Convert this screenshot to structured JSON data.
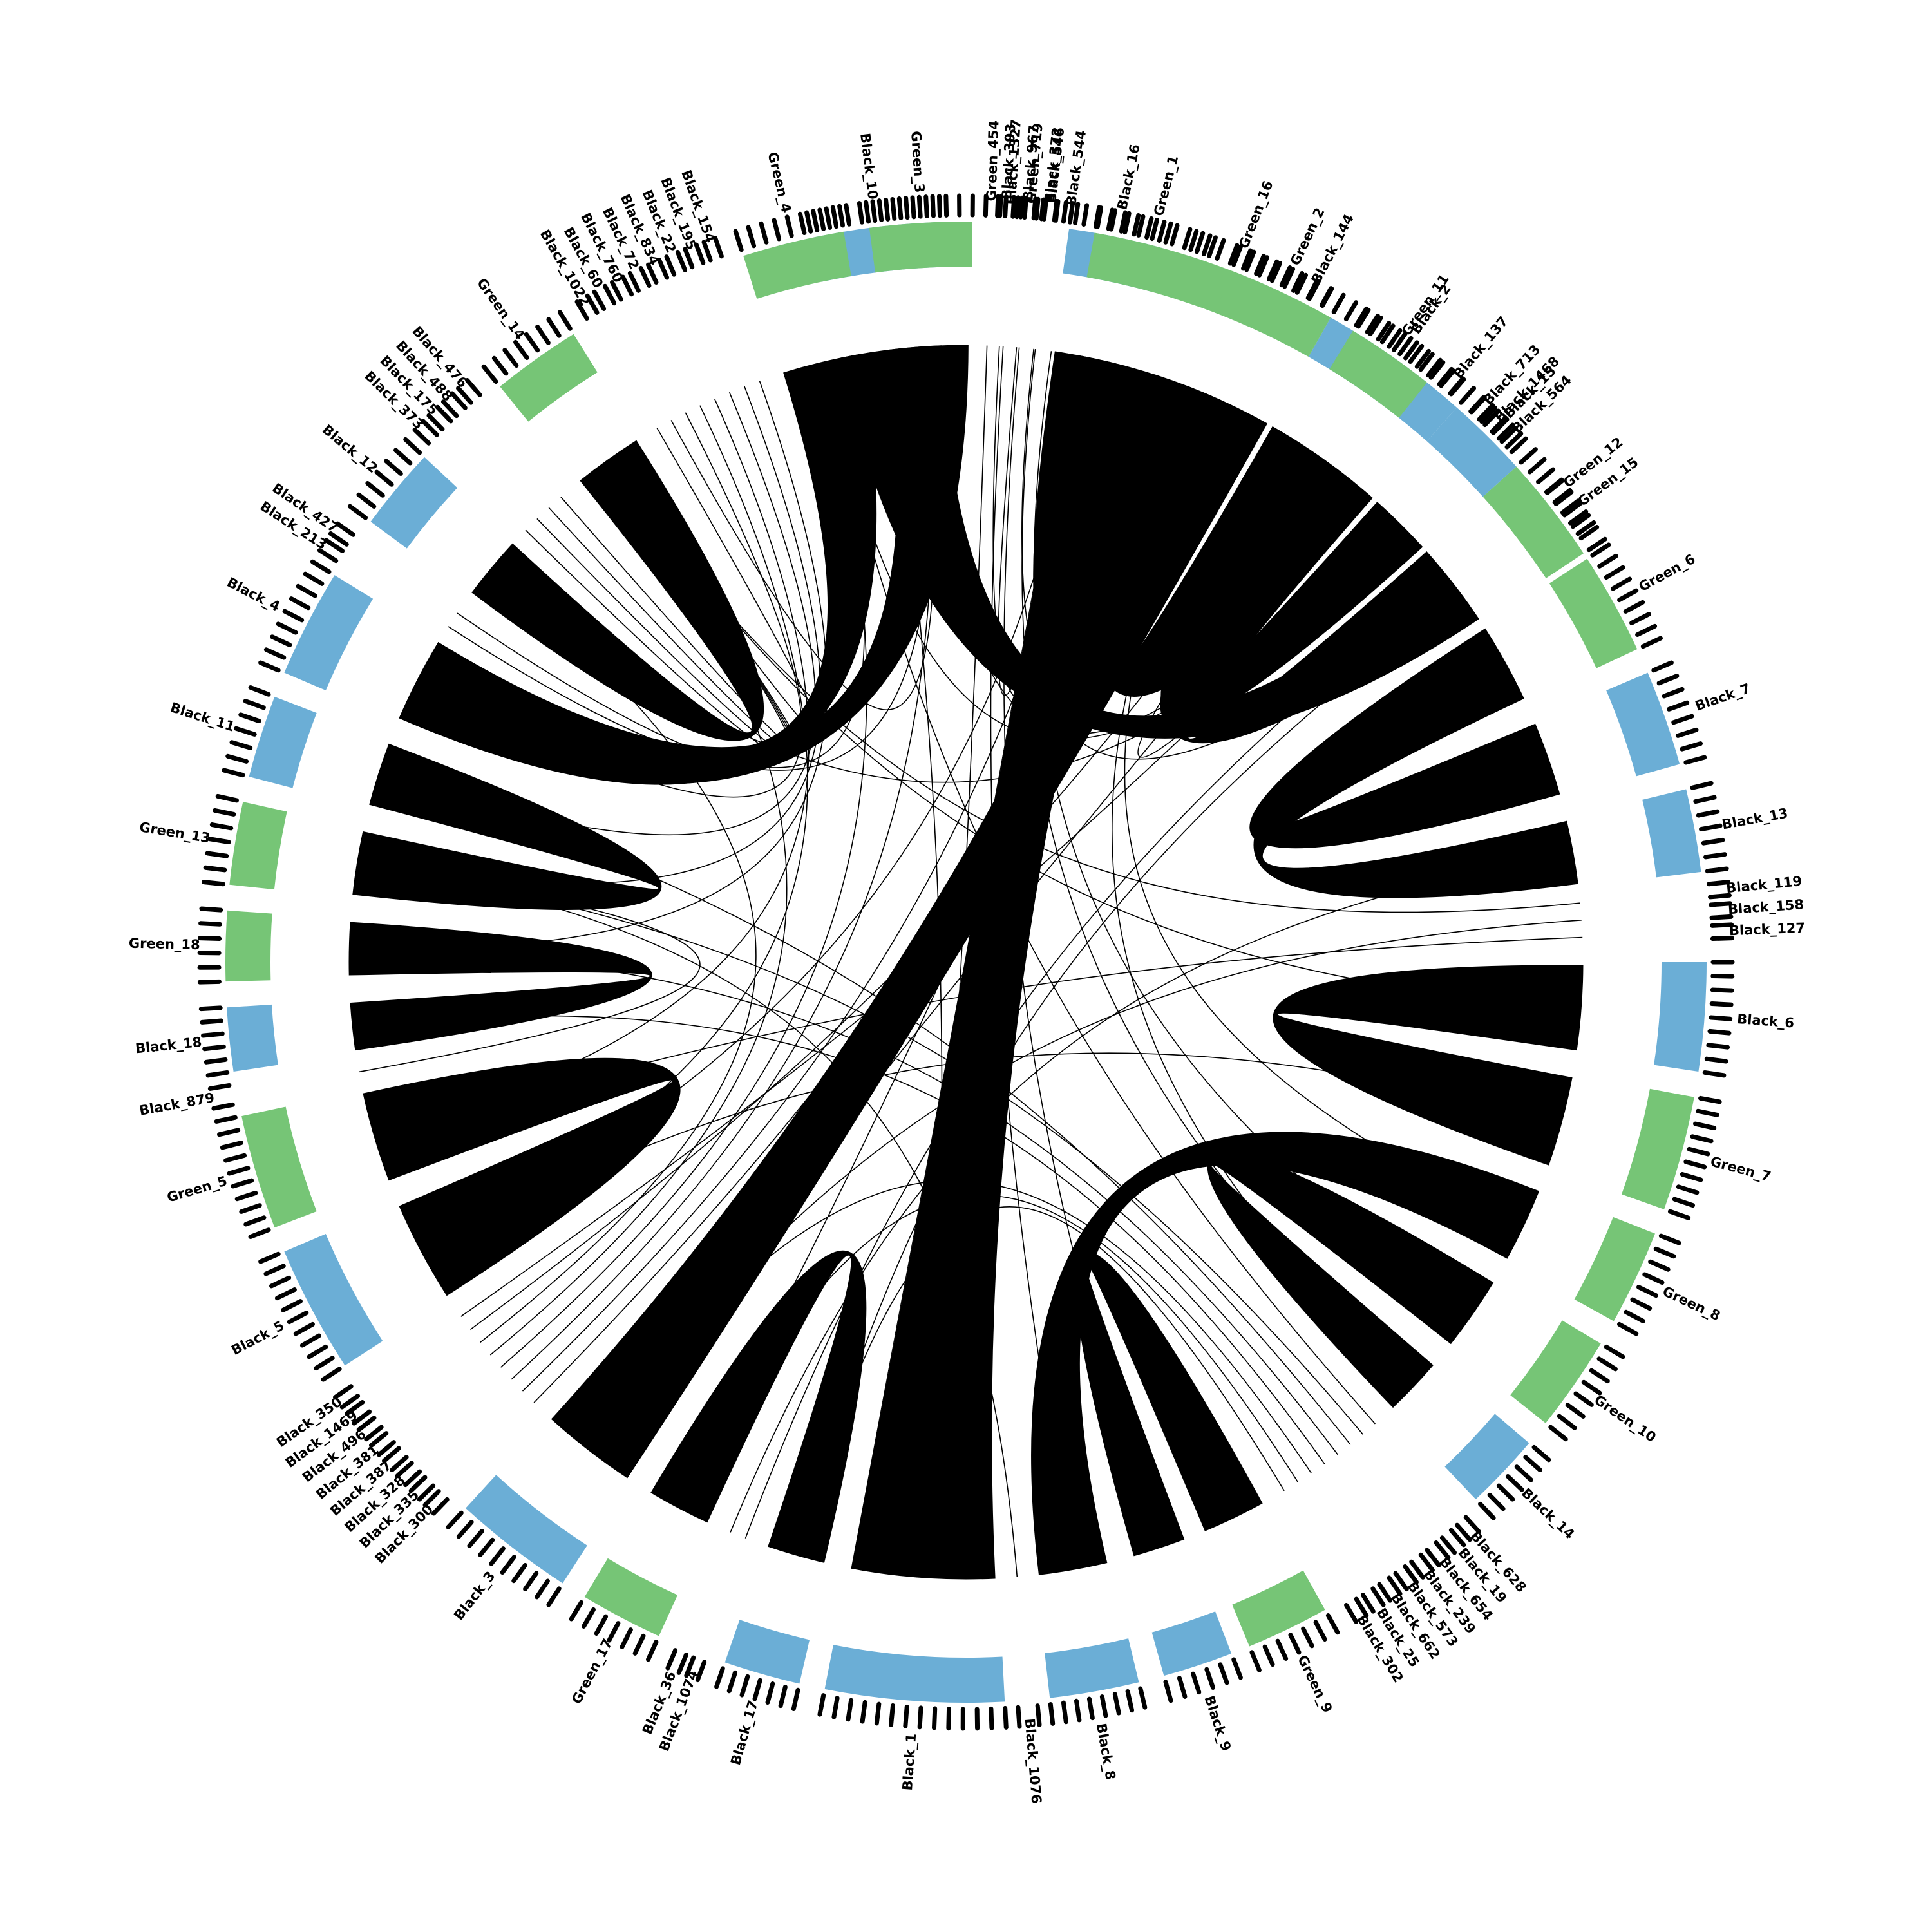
{
  "colors": {
    "green": "#76c576",
    "blue": "#6baed6",
    "link": "#000000",
    "tick": "#000000",
    "background": "#ffffff"
  },
  "segments": [
    {
      "name": "Black_10",
      "color": "blue",
      "start": -12.0,
      "end": -2.0
    },
    {
      "name": "Black_393",
      "color": "none",
      "start": 2.6,
      "end": 3.6
    },
    {
      "name": "Black_967",
      "color": "none",
      "start": 4.2,
      "end": 5.2
    },
    {
      "name": "Black_372",
      "color": "none",
      "start": 5.8,
      "end": 6.8
    },
    {
      "name": "Black_16",
      "color": "blue",
      "start": 8.0,
      "end": 15.5
    },
    {
      "name": "Green_16",
      "color": "green",
      "start": 17.5,
      "end": 25.0
    },
    {
      "name": "Black_144",
      "color": "none",
      "start": 26.0,
      "end": 28.5
    },
    {
      "name": "Black_2",
      "color": "blue",
      "start": 29.5,
      "end": 41.5
    },
    {
      "name": "Black_713",
      "color": "none",
      "start": 42.5,
      "end": 43.4
    },
    {
      "name": "Black_1468",
      "color": "none",
      "start": 44.0,
      "end": 44.9
    },
    {
      "name": "Black_564",
      "color": "none",
      "start": 45.5,
      "end": 46.4
    },
    {
      "name": "Green_12",
      "color": "green",
      "start": 48.0,
      "end": 55.0
    },
    {
      "name": "Green_6",
      "color": "green",
      "start": 57.0,
      "end": 65.0
    },
    {
      "name": "Black_7",
      "color": "blue",
      "start": 67.0,
      "end": 74.5
    },
    {
      "name": "Black_13",
      "color": "blue",
      "start": 76.5,
      "end": 83.0
    },
    {
      "name": "Black_119",
      "color": "none",
      "start": 84.0,
      "end": 85.0
    },
    {
      "name": "Black_158",
      "color": "none",
      "start": 85.6,
      "end": 86.6
    },
    {
      "name": "Black_127",
      "color": "none",
      "start": 87.2,
      "end": 88.2
    },
    {
      "name": "Black_6",
      "color": "blue",
      "start": 90.0,
      "end": 98.5
    },
    {
      "name": "Green_7",
      "color": "green",
      "start": 100.5,
      "end": 109.5
    },
    {
      "name": "Green_8",
      "color": "green",
      "start": 111.5,
      "end": 119.0
    },
    {
      "name": "Green_10",
      "color": "green",
      "start": 121.0,
      "end": 128.5
    },
    {
      "name": "Black_14",
      "color": "blue",
      "start": 130.5,
      "end": 136.5
    },
    {
      "name": "Black_628",
      "color": "none",
      "start": 138.0,
      "end": 138.9
    },
    {
      "name": "Black_19",
      "color": "none",
      "start": 139.5,
      "end": 140.4
    },
    {
      "name": "Black_654",
      "color": "none",
      "start": 141.0,
      "end": 141.9
    },
    {
      "name": "Black_239",
      "color": "none",
      "start": 142.5,
      "end": 143.4
    },
    {
      "name": "Black_573",
      "color": "none",
      "start": 144.0,
      "end": 144.9
    },
    {
      "name": "Black_662",
      "color": "none",
      "start": 145.5,
      "end": 146.4
    },
    {
      "name": "Black_25",
      "color": "none",
      "start": 147.0,
      "end": 147.9
    },
    {
      "name": "Black_302",
      "color": "none",
      "start": 148.5,
      "end": 149.4
    },
    {
      "name": "Green_9",
      "color": "green",
      "start": 151.0,
      "end": 157.5
    },
    {
      "name": "Black_9",
      "color": "blue",
      "start": 159.0,
      "end": 164.5
    },
    {
      "name": "Black_8",
      "color": "blue",
      "start": 166.5,
      "end": 173.5
    },
    {
      "name": "Black_1076",
      "color": "none",
      "start": 174.5,
      "end": 176.0
    },
    {
      "name": "Black_1",
      "color": "blue",
      "start": 177.0,
      "end": 191.0
    },
    {
      "name": "Black_17",
      "color": "blue",
      "start": 193.0,
      "end": 199.0
    },
    {
      "name": "Black_1074",
      "color": "none",
      "start": 200.5,
      "end": 201.4
    },
    {
      "name": "Black_36",
      "color": "none",
      "start": 202.0,
      "end": 202.9
    },
    {
      "name": "Green_17",
      "color": "green",
      "start": 204.5,
      "end": 211.0
    },
    {
      "name": "Black_3",
      "color": "blue",
      "start": 213.0,
      "end": 222.5
    },
    {
      "name": "Black_300",
      "color": "none",
      "start": 224.0,
      "end": 224.9
    },
    {
      "name": "Black_335",
      "color": "none",
      "start": 225.5,
      "end": 226.4
    },
    {
      "name": "Black_328",
      "color": "none",
      "start": 227.0,
      "end": 227.9
    },
    {
      "name": "Black_387",
      "color": "none",
      "start": 228.5,
      "end": 229.4
    },
    {
      "name": "Black_381",
      "color": "none",
      "start": 230.0,
      "end": 230.9
    },
    {
      "name": "Black_496",
      "color": "none",
      "start": 231.5,
      "end": 232.4
    },
    {
      "name": "Black_1469",
      "color": "none",
      "start": 233.0,
      "end": 233.9
    },
    {
      "name": "Black_350",
      "color": "none",
      "start": 234.5,
      "end": 235.4
    },
    {
      "name": "Black_5",
      "color": "blue",
      "start": 237.0,
      "end": 247.0
    },
    {
      "name": "Green_5",
      "color": "green",
      "start": 249.0,
      "end": 258.0
    },
    {
      "name": "Black_879",
      "color": "none",
      "start": 259.0,
      "end": 260.5
    },
    {
      "name": "Black_18",
      "color": "blue",
      "start": 261.5,
      "end": 266.5
    },
    {
      "name": "Green_18",
      "color": "green",
      "start": 268.5,
      "end": 274.0
    },
    {
      "name": "Green_13",
      "color": "green",
      "start": 276.0,
      "end": 282.5
    },
    {
      "name": "Black_11",
      "color": "blue",
      "start": 284.5,
      "end": 291.0
    },
    {
      "name": "Black_4",
      "color": "blue",
      "start": 293.0,
      "end": 301.5
    },
    {
      "name": "Black_213",
      "color": "none",
      "start": 302.5,
      "end": 303.4
    },
    {
      "name": "Black_427",
      "color": "none",
      "start": 304.0,
      "end": 304.9
    },
    {
      "name": "Black_12",
      "color": "blue",
      "start": 306.5,
      "end": 313.0
    },
    {
      "name": "Black_373",
      "color": "none",
      "start": 314.0,
      "end": 314.9
    },
    {
      "name": "Black_175",
      "color": "none",
      "start": 315.5,
      "end": 316.4
    },
    {
      "name": "Black_488",
      "color": "none",
      "start": 317.0,
      "end": 317.9
    },
    {
      "name": "Black_476",
      "color": "none",
      "start": 318.5,
      "end": 319.4
    },
    {
      "name": "Green_14",
      "color": "green",
      "start": 321.0,
      "end": 328.0
    },
    {
      "name": "Black_1022",
      "color": "none",
      "start": 329.5,
      "end": 330.4
    },
    {
      "name": "Black_60",
      "color": "none",
      "start": 331.0,
      "end": 331.9
    },
    {
      "name": "Black_760",
      "color": "none",
      "start": 332.5,
      "end": 333.4
    },
    {
      "name": "Black_72",
      "color": "none",
      "start": 334.0,
      "end": 334.9
    },
    {
      "name": "Black_834",
      "color": "none",
      "start": 335.5,
      "end": 336.4
    },
    {
      "name": "Black_22",
      "color": "none",
      "start": 337.0,
      "end": 337.9
    },
    {
      "name": "Black_195",
      "color": "none",
      "start": 338.5,
      "end": 339.4
    },
    {
      "name": "Black_154",
      "color": "none",
      "start": 340.0,
      "end": 340.9
    },
    {
      "name": "Green_4",
      "color": "green",
      "start": 342.5,
      "end": 350.5
    },
    {
      "name": "Green_3",
      "color": "green",
      "start": 352.5,
      "end": 360.5
    },
    {
      "name": "Green_454",
      "color": "none",
      "start": 361.5,
      "end": 362.4
    },
    {
      "name": "Black_1327",
      "color": "none",
      "start": 363.0,
      "end": 363.9
    },
    {
      "name": "Green_719",
      "color": "none",
      "start": 364.5,
      "end": 365.4
    },
    {
      "name": "Black_546",
      "color": "none",
      "start": 366.0,
      "end": 366.9
    },
    {
      "name": "Black_544",
      "color": "none",
      "start": 367.5,
      "end": 368.4
    },
    {
      "name": "Green_1",
      "color": "green",
      "start": 370.0,
      "end": 379.0
    },
    {
      "name": "Green_2",
      "color": "green",
      "start": 381.0,
      "end": 389.5
    },
    {
      "name": "Green_11",
      "color": "green",
      "start": 391.5,
      "end": 398.5
    },
    {
      "name": "Black_137",
      "color": "none",
      "start": 399.5,
      "end": 400.5
    },
    {
      "name": "Black_15",
      "color": "blue",
      "start": 401.5,
      "end": 408.0
    },
    {
      "name": "Green_15",
      "color": "green",
      "start": 410.0,
      "end": 416.5
    }
  ],
  "ribbons": [
    {
      "from": "Black_10",
      "to": "Green_15"
    },
    {
      "from": "Black_15",
      "to": "Green_11"
    },
    {
      "from": "Black_16",
      "to": "Green_16"
    },
    {
      "from": "Black_2",
      "to": "Green_16"
    },
    {
      "from": "Black_2",
      "to": "Green_12"
    },
    {
      "from": "Black_7",
      "to": "Green_6"
    },
    {
      "from": "Black_13",
      "to": "Green_6"
    },
    {
      "from": "Black_6",
      "to": "Green_7"
    },
    {
      "from": "Black_14",
      "to": "Green_10"
    },
    {
      "from": "Black_9",
      "to": "Green_9"
    },
    {
      "from": "Black_8",
      "to": "Green_8"
    },
    {
      "from": "Black_17",
      "to": "Green_17"
    },
    {
      "from": "Black_3",
      "to": "Green_2"
    },
    {
      "from": "Black_1",
      "to": "Green_1"
    },
    {
      "from": "Black_5",
      "to": "Green_5"
    },
    {
      "from": "Black_18",
      "to": "Green_18"
    },
    {
      "from": "Black_11",
      "to": "Green_13"
    },
    {
      "from": "Black_4",
      "to": "Green_4"
    },
    {
      "from": "Black_12",
      "to": "Green_14"
    },
    {
      "from": "Black_4",
      "to": "Green_3"
    }
  ],
  "thin_links": [
    {
      "from": "Black_393",
      "to": "Green_16"
    },
    {
      "from": "Black_967",
      "to": "Black_16"
    },
    {
      "from": "Black_372",
      "to": "Green_15"
    },
    {
      "from": "Black_2",
      "to": "Black_15"
    },
    {
      "from": "Black_144",
      "to": "Green_1"
    },
    {
      "from": "Black_713",
      "to": "Green_3"
    },
    {
      "from": "Black_1468",
      "to": "Green_4"
    },
    {
      "from": "Black_564",
      "to": "Black_12"
    },
    {
      "from": "Black_119",
      "to": "Green_14"
    },
    {
      "from": "Black_158",
      "to": "Black_3"
    },
    {
      "from": "Black_127",
      "to": "Green_5"
    },
    {
      "from": "Black_6",
      "to": "Green_14"
    },
    {
      "from": "Green_7",
      "to": "Black_5"
    },
    {
      "from": "Green_8",
      "to": "Green_2"
    },
    {
      "from": "Black_14",
      "to": "Green_2"
    },
    {
      "from": "Black_628",
      "to": "Green_4"
    },
    {
      "from": "Black_19",
      "to": "Green_13"
    },
    {
      "from": "Black_654",
      "to": "Black_11"
    },
    {
      "from": "Black_239",
      "to": "Green_18"
    },
    {
      "from": "Black_573",
      "to": "Black_18"
    },
    {
      "from": "Black_662",
      "to": "Black_3"
    },
    {
      "from": "Black_25",
      "to": "Green_17"
    },
    {
      "from": "Black_302",
      "to": "Black_17"
    },
    {
      "from": "Black_1076",
      "to": "Green_13"
    },
    {
      "from": "Black_1074",
      "to": "Green_12"
    },
    {
      "from": "Black_36",
      "to": "Black_13"
    },
    {
      "from": "Black_300",
      "to": "Green_2"
    },
    {
      "from": "Black_335",
      "to": "Green_1"
    },
    {
      "from": "Black_328",
      "to": "Green_3"
    },
    {
      "from": "Black_387",
      "to": "Green_4"
    },
    {
      "from": "Black_381",
      "to": "Green_14"
    },
    {
      "from": "Black_496",
      "to": "Black_12"
    },
    {
      "from": "Black_1469",
      "to": "Green_11"
    },
    {
      "from": "Black_350",
      "to": "Black_15"
    },
    {
      "from": "Black_879",
      "to": "Green_13"
    },
    {
      "from": "Black_213",
      "to": "Green_3"
    },
    {
      "from": "Black_427",
      "to": "Green_4"
    },
    {
      "from": "Black_373",
      "to": "Green_14"
    },
    {
      "from": "Black_175",
      "to": "Green_14"
    },
    {
      "from": "Black_488",
      "to": "Green_14"
    },
    {
      "from": "Black_476",
      "to": "Green_14"
    },
    {
      "from": "Black_1022",
      "to": "Green_14"
    },
    {
      "from": "Black_60",
      "to": "Green_3"
    },
    {
      "from": "Black_760",
      "to": "Black_4"
    },
    {
      "from": "Black_72",
      "to": "Black_5"
    },
    {
      "from": "Black_834",
      "to": "Green_5"
    },
    {
      "from": "Black_22",
      "to": "Black_11"
    },
    {
      "from": "Black_195",
      "to": "Green_13"
    },
    {
      "from": "Black_154",
      "to": "Green_18"
    },
    {
      "from": "Green_454",
      "to": "Black_1"
    },
    {
      "from": "Black_1327",
      "to": "Black_8"
    },
    {
      "from": "Green_719",
      "to": "Black_9"
    },
    {
      "from": "Black_546",
      "to": "Black_14"
    },
    {
      "from": "Black_544",
      "to": "Green_10"
    },
    {
      "from": "Black_137",
      "to": "Black_3"
    },
    {
      "from": "Green_15",
      "to": "Black_17"
    },
    {
      "from": "Black_10",
      "to": "Black_1"
    },
    {
      "from": "Black_16",
      "to": "Black_5"
    },
    {
      "from": "Green_16",
      "to": "Green_17"
    }
  ]
}
